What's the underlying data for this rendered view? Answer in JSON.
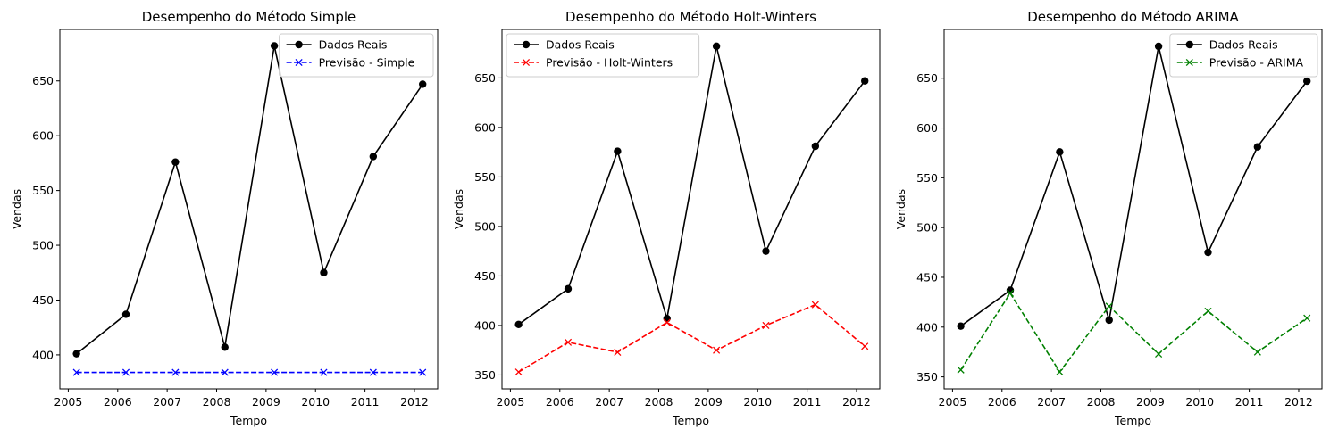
{
  "chart_data": [
    {
      "type": "line",
      "title": "Desempenho do Método Simple",
      "xlabel": "Tempo",
      "ylabel": "Vendas",
      "x": [
        "2005-03",
        "2006-03",
        "2007-03",
        "2008-03",
        "2009-03",
        "2010-03",
        "2011-03",
        "2012-03"
      ],
      "xticks": [
        "2005",
        "2006",
        "2007",
        "2008",
        "2009",
        "2010",
        "2011",
        "2012"
      ],
      "yticks": [
        400,
        450,
        500,
        550,
        600,
        650
      ],
      "ylim": [
        369,
        697
      ],
      "legend_position": "upper right",
      "series": [
        {
          "name": "Dados Reais",
          "color": "#000000",
          "style": "solid",
          "marker": "circle",
          "values": [
            401,
            437,
            576,
            407,
            682,
            475,
            581,
            647
          ]
        },
        {
          "name": "Previsão - Simple",
          "color": "#0000ff",
          "style": "dashed",
          "marker": "x",
          "values": [
            384,
            384,
            384,
            384,
            384,
            384,
            384,
            384
          ]
        }
      ]
    },
    {
      "type": "line",
      "title": "Desempenho do Método Holt-Winters",
      "xlabel": "Tempo",
      "ylabel": "Vendas",
      "x": [
        "2005-03",
        "2006-03",
        "2007-03",
        "2008-03",
        "2009-03",
        "2010-03",
        "2011-03",
        "2012-03"
      ],
      "xticks": [
        "2005",
        "2006",
        "2007",
        "2008",
        "2009",
        "2010",
        "2011",
        "2012"
      ],
      "yticks": [
        350,
        400,
        450,
        500,
        550,
        600,
        650
      ],
      "ylim": [
        336,
        699
      ],
      "legend_position": "upper left",
      "series": [
        {
          "name": "Dados Reais",
          "color": "#000000",
          "style": "solid",
          "marker": "circle",
          "values": [
            401,
            437,
            576,
            407,
            682,
            475,
            581,
            647
          ]
        },
        {
          "name": "Previsão - Holt-Winters",
          "color": "#ff0000",
          "style": "dashed",
          "marker": "x",
          "values": [
            353,
            383,
            373,
            403,
            375,
            400,
            421,
            379
          ]
        }
      ]
    },
    {
      "type": "line",
      "title": "Desempenho do Método ARIMA",
      "xlabel": "Tempo",
      "ylabel": "Vendas",
      "x": [
        "2005-03",
        "2006-03",
        "2007-03",
        "2008-03",
        "2009-03",
        "2010-03",
        "2011-03",
        "2012-03"
      ],
      "xticks": [
        "2005",
        "2006",
        "2007",
        "2008",
        "2009",
        "2010",
        "2011",
        "2012"
      ],
      "yticks": [
        350,
        400,
        450,
        500,
        550,
        600,
        650
      ],
      "ylim": [
        338,
        699
      ],
      "legend_position": "upper right",
      "series": [
        {
          "name": "Dados Reais",
          "color": "#000000",
          "style": "solid",
          "marker": "circle",
          "values": [
            401,
            437,
            576,
            407,
            682,
            475,
            581,
            647
          ]
        },
        {
          "name": "Previsão - ARIMA",
          "color": "#008000",
          "style": "dashed",
          "marker": "x",
          "values": [
            357,
            434,
            355,
            421,
            373,
            416,
            375,
            409
          ]
        }
      ]
    }
  ]
}
